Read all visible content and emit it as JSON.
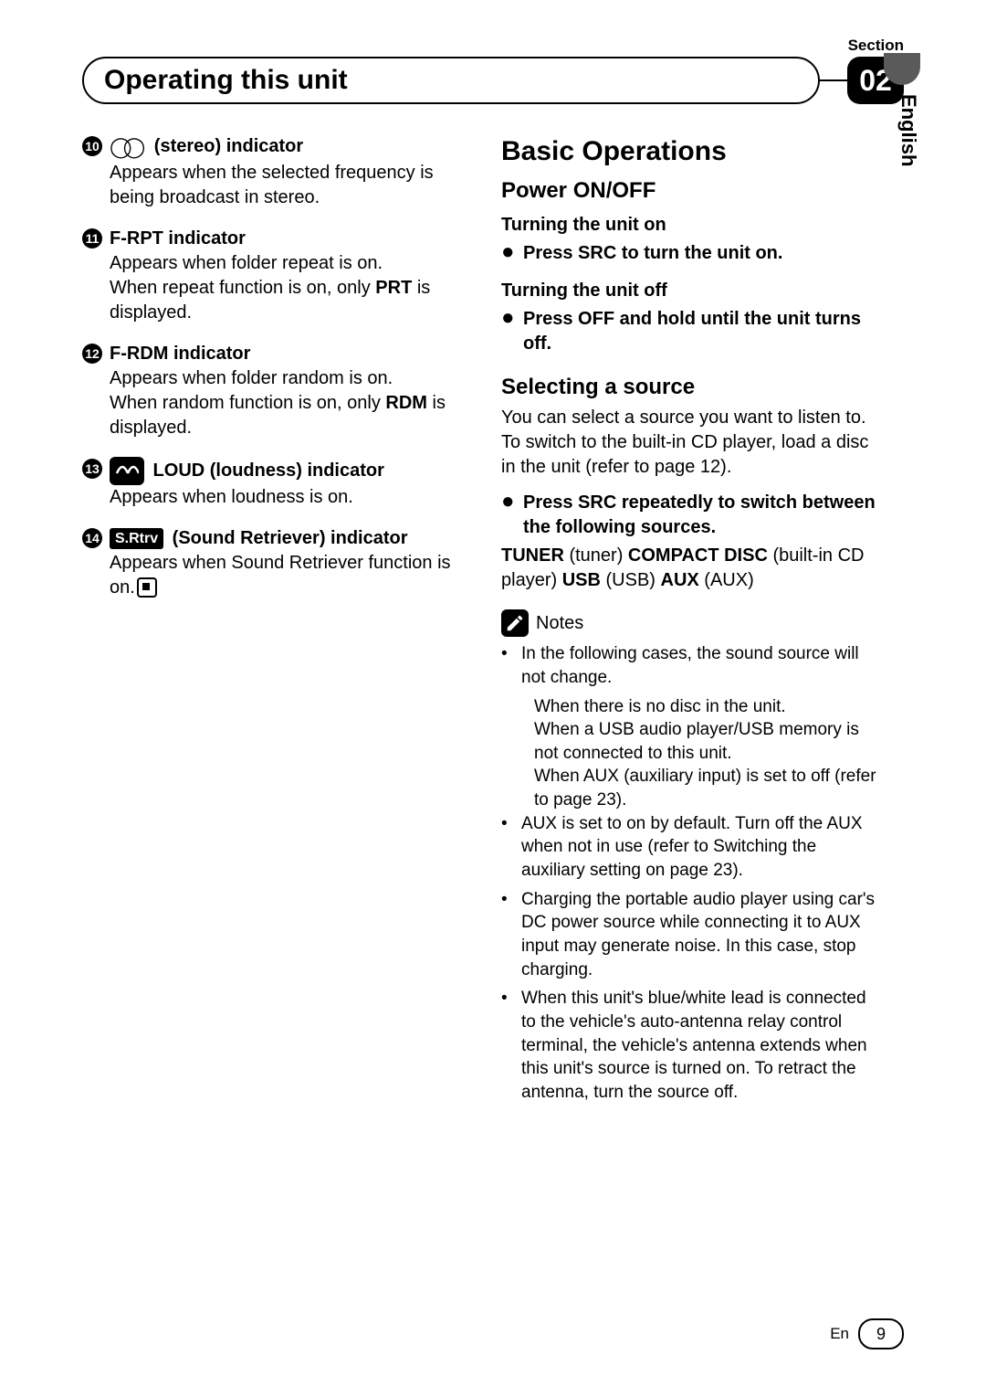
{
  "header": {
    "section_label": "Section",
    "section_number": "02",
    "title": "Operating this unit",
    "language_tab": "English"
  },
  "left_items": [
    {
      "num": "10",
      "icon": "stereo",
      "title": "(stereo) indicator",
      "body_parts": [
        {
          "t": "Appears when the selected frequency is being broadcast in stereo."
        }
      ]
    },
    {
      "num": "11",
      "icon": null,
      "title": "F-RPT indicator",
      "body_parts": [
        {
          "t": "Appears when folder repeat is on."
        },
        {
          "t": "When repeat function is on, only ",
          "bold_after": "PRT",
          "tail": " is displayed."
        }
      ]
    },
    {
      "num": "12",
      "icon": null,
      "title": "F-RDM indicator",
      "body_parts": [
        {
          "t": "Appears when folder random is on."
        },
        {
          "t": "When random function is on, only ",
          "bold_after": "RDM",
          "tail": " is displayed."
        }
      ]
    },
    {
      "num": "13",
      "icon": "loud",
      "title": "LOUD (loudness) indicator",
      "body_parts": [
        {
          "t": "Appears when loudness is on."
        }
      ]
    },
    {
      "num": "14",
      "icon": "srtrv",
      "title": "(Sound Retriever) indicator",
      "body_parts": [
        {
          "t": "Appears when Sound Retriever function is on.",
          "stop_icon": true
        }
      ]
    }
  ],
  "right": {
    "basic_ops_title": "Basic Operations",
    "power_title": "Power ON/OFF",
    "turn_on_title": "Turning the unit on",
    "turn_on_step": "Press SRC to turn the unit on.",
    "turn_off_title": "Turning the unit off",
    "turn_off_step": "Press OFF and hold until the unit turns off.",
    "select_title": "Selecting a source",
    "select_para": "You can select a source you want to listen to. To switch to the built-in CD player, load a disc in the unit (refer to page 12).",
    "select_step": "Press SRC repeatedly to switch between the following sources.",
    "sources": {
      "tuner_b": "TUNER",
      "tuner_t": " (tuner)   ",
      "cd_b": "COMPACT DISC",
      "cd_t": " (built-in CD player)   ",
      "usb_b": "USB",
      "usb_t": " (USB)   ",
      "aux_b": "AUX",
      "aux_t": " (AUX)"
    },
    "notes_label": "Notes",
    "notes": [
      {
        "text": "In the following cases, the sound source will not change.",
        "subs": [
          "When there is no disc in the unit.",
          "When a USB audio player/USB memory is not connected to this unit.",
          "When AUX (auxiliary input) is set to off (refer to page 23)."
        ]
      },
      {
        "text": "AUX is set to on by default. Turn off the AUX when not in use (refer to Switching the auxiliary setting on page 23)."
      },
      {
        "text": "Charging the portable audio player using car's DC power source while connecting it to AUX input may generate noise. In this case, stop charging."
      },
      {
        "text": "When this unit's blue/white lead is connected to the vehicle's auto-antenna relay control terminal, the vehicle's antenna extends when this unit's source is turned on. To retract the antenna, turn the source off."
      }
    ]
  },
  "footer": {
    "lang_code": "En",
    "page_number": "9"
  },
  "colors": {
    "text": "#000000",
    "bg": "#ffffff",
    "tab_gray": "#5a5a5a"
  }
}
